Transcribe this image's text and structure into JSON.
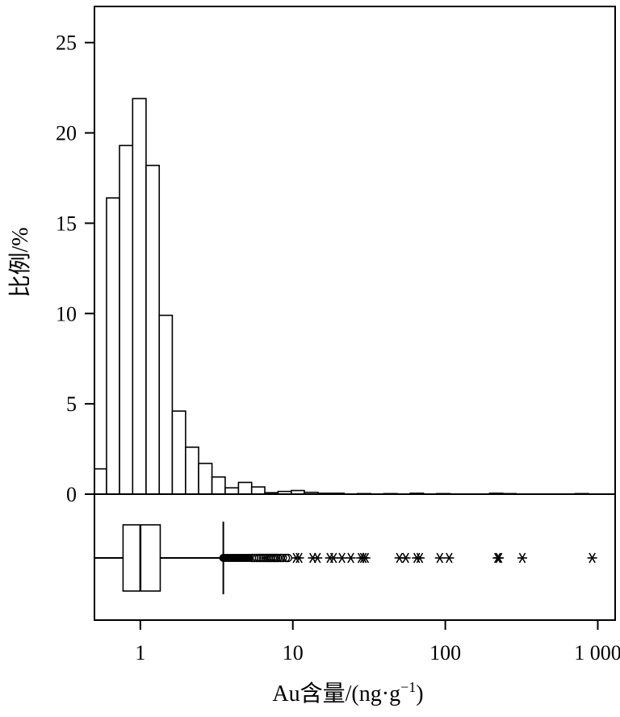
{
  "chart_data": [
    {
      "type": "histogram",
      "ylabel": "比例/%",
      "xscale": "log",
      "xlim": [
        0.5,
        1300
      ],
      "ylim": [
        0,
        27
      ],
      "yticks": [
        0,
        5,
        10,
        15,
        20,
        25
      ],
      "ytick_labels": [
        "0",
        "5",
        "10",
        "15",
        "20",
        "25"
      ],
      "bins": [
        {
          "x0": 0.5,
          "x1": 0.6,
          "value": 1.4
        },
        {
          "x0": 0.6,
          "x1": 0.73,
          "value": 16.4
        },
        {
          "x0": 0.73,
          "x1": 0.89,
          "value": 19.3
        },
        {
          "x0": 0.89,
          "x1": 1.09,
          "value": 21.9
        },
        {
          "x0": 1.09,
          "x1": 1.33,
          "value": 18.2
        },
        {
          "x0": 1.33,
          "x1": 1.62,
          "value": 9.9
        },
        {
          "x0": 1.62,
          "x1": 1.98,
          "value": 4.6
        },
        {
          "x0": 1.98,
          "x1": 2.41,
          "value": 2.6
        },
        {
          "x0": 2.41,
          "x1": 2.95,
          "value": 1.7
        },
        {
          "x0": 2.95,
          "x1": 3.6,
          "value": 0.95
        },
        {
          "x0": 3.6,
          "x1": 4.4,
          "value": 0.35
        },
        {
          "x0": 4.4,
          "x1": 5.37,
          "value": 0.65
        },
        {
          "x0": 5.37,
          "x1": 6.55,
          "value": 0.4
        },
        {
          "x0": 6.55,
          "x1": 8.0,
          "value": 0.08
        },
        {
          "x0": 8.0,
          "x1": 9.77,
          "value": 0.15
        },
        {
          "x0": 9.77,
          "x1": 11.9,
          "value": 0.2
        },
        {
          "x0": 11.9,
          "x1": 14.6,
          "value": 0.1
        },
        {
          "x0": 14.6,
          "x1": 17.8,
          "value": 0.05
        },
        {
          "x0": 17.8,
          "x1": 21.7,
          "value": 0.05
        },
        {
          "x0": 26.5,
          "x1": 32.4,
          "value": 0.03
        },
        {
          "x0": 39.5,
          "x1": 48.3,
          "value": 0.03
        },
        {
          "x0": 58.9,
          "x1": 71.9,
          "value": 0.05
        },
        {
          "x0": 87.8,
          "x1": 107.3,
          "value": 0.03
        },
        {
          "x0": 195.0,
          "x1": 238.0,
          "value": 0.05
        },
        {
          "x0": 238.0,
          "x1": 291.0,
          "value": 0.03
        },
        {
          "x0": 711.0,
          "x1": 868.0,
          "value": 0.03
        }
      ]
    },
    {
      "type": "boxplot",
      "xlabel": "Au含量/(ng·g",
      "xlabel_sup": "−1",
      "xlabel_close": ")",
      "xscale": "log",
      "xticks": [
        1,
        10,
        100,
        1000
      ],
      "xtick_labels": [
        "1",
        "10",
        "100",
        "1 000"
      ],
      "whisker_low": 0.5,
      "q1": 0.77,
      "median": 1.0,
      "q3": 1.35,
      "whisker_high": 3.5,
      "outliers_filled": [
        3.5,
        3.6,
        3.7,
        3.8,
        3.9,
        4.0,
        4.1,
        4.2,
        4.3,
        4.4,
        4.5,
        4.6,
        4.7,
        4.8,
        4.9,
        5.0,
        5.1,
        5.2
      ],
      "outliers_open": [
        5.4,
        5.6,
        5.8,
        6.0,
        6.2,
        6.4,
        6.6,
        6.8,
        7.0,
        7.2,
        7.4,
        7.6,
        7.8,
        8.0,
        8.3,
        8.6,
        9.0,
        9.3
      ],
      "outliers_star": [
        10.5,
        11.0,
        13.5,
        14.5,
        17.5,
        18.5,
        21.0,
        24.0,
        28.0,
        29.0,
        30.0,
        50.0,
        55.0,
        65.0,
        68.0,
        92.0,
        106.0,
        220.0,
        225.0,
        320.0,
        920.0
      ]
    }
  ]
}
